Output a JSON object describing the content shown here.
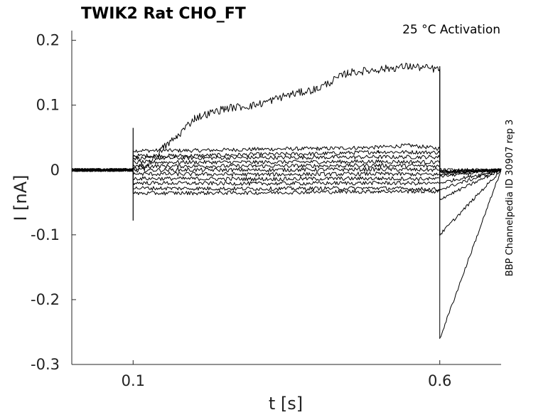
{
  "chart_data": {
    "type": "line",
    "title": "TWIK2  Rat  CHO_FT",
    "annotation": "25 °C  Activation",
    "side_note": "BBP Channelpedia ID 30907 rep 3",
    "xlabel": "t [s]",
    "ylabel": "I [nA]",
    "xlim": [
      0.0,
      0.7
    ],
    "ylim": [
      -0.3,
      0.215
    ],
    "xticks": [
      0.1,
      0.6
    ],
    "xtick_labels": [
      "0.1",
      "0.6"
    ],
    "yticks": [
      -0.3,
      -0.2,
      -0.1,
      0,
      0.1,
      0.2
    ],
    "ytick_labels": [
      "-0.3",
      "-0.2",
      "-0.1",
      "0",
      "0.1",
      "0.2"
    ],
    "grid": false,
    "stim_on": 0.1,
    "stim_off": 0.6,
    "series": [
      {
        "points": [
          [
            0.0,
            0.0
          ],
          [
            0.1,
            0.0
          ],
          [
            0.1,
            0.03
          ],
          [
            0.2,
            0.03
          ],
          [
            0.3,
            0.032
          ],
          [
            0.4,
            0.033
          ],
          [
            0.5,
            0.035
          ],
          [
            0.55,
            0.038
          ],
          [
            0.6,
            0.033
          ],
          [
            0.6,
            -0.002
          ],
          [
            0.7,
            0.0
          ]
        ]
      },
      {
        "points": [
          [
            0.0,
            0.0
          ],
          [
            0.1,
            0.0
          ],
          [
            0.1,
            0.022
          ],
          [
            0.2,
            0.022
          ],
          [
            0.3,
            0.024
          ],
          [
            0.4,
            0.025
          ],
          [
            0.5,
            0.028
          ],
          [
            0.6,
            0.027
          ],
          [
            0.6,
            -0.002
          ],
          [
            0.7,
            0.0
          ]
        ]
      },
      {
        "points": [
          [
            0.0,
            0.0
          ],
          [
            0.1,
            0.0
          ],
          [
            0.1,
            0.018
          ],
          [
            0.3,
            0.019
          ],
          [
            0.5,
            0.02
          ],
          [
            0.6,
            0.02
          ],
          [
            0.6,
            -0.003
          ],
          [
            0.7,
            0.0
          ]
        ]
      },
      {
        "points": [
          [
            0.0,
            0.0
          ],
          [
            0.1,
            0.0
          ],
          [
            0.1,
            0.012
          ],
          [
            0.3,
            0.012
          ],
          [
            0.5,
            0.013
          ],
          [
            0.6,
            0.012
          ],
          [
            0.6,
            -0.004
          ],
          [
            0.7,
            0.0
          ]
        ]
      },
      {
        "points": [
          [
            0.0,
            0.0
          ],
          [
            0.1,
            0.0
          ],
          [
            0.1,
            0.006
          ],
          [
            0.3,
            0.006
          ],
          [
            0.5,
            0.007
          ],
          [
            0.6,
            0.006
          ],
          [
            0.6,
            -0.006
          ],
          [
            0.7,
            0.0
          ]
        ]
      },
      {
        "points": [
          [
            0.0,
            0.0
          ],
          [
            0.1,
            0.0
          ],
          [
            0.1,
            0.0
          ],
          [
            0.3,
            0.0
          ],
          [
            0.5,
            0.001
          ],
          [
            0.6,
            0.0
          ],
          [
            0.6,
            -0.01
          ],
          [
            0.7,
            0.0
          ]
        ]
      },
      {
        "points": [
          [
            0.0,
            0.0
          ],
          [
            0.1,
            0.0
          ],
          [
            0.1,
            -0.006
          ],
          [
            0.3,
            -0.007
          ],
          [
            0.5,
            -0.006
          ],
          [
            0.6,
            -0.007
          ],
          [
            0.6,
            -0.02
          ],
          [
            0.7,
            0.0
          ]
        ]
      },
      {
        "points": [
          [
            0.0,
            0.0
          ],
          [
            0.1,
            0.0
          ],
          [
            0.1,
            -0.013
          ],
          [
            0.3,
            -0.014
          ],
          [
            0.5,
            -0.013
          ],
          [
            0.6,
            -0.014
          ],
          [
            0.6,
            -0.03
          ],
          [
            0.7,
            0.0
          ]
        ]
      },
      {
        "points": [
          [
            0.0,
            0.0
          ],
          [
            0.1,
            0.0
          ],
          [
            0.1,
            -0.02
          ],
          [
            0.3,
            -0.021
          ],
          [
            0.5,
            -0.02
          ],
          [
            0.6,
            -0.021
          ],
          [
            0.6,
            -0.045
          ],
          [
            0.7,
            0.0
          ]
        ]
      },
      {
        "points": [
          [
            0.0,
            0.0
          ],
          [
            0.1,
            0.0
          ],
          [
            0.1,
            -0.028
          ],
          [
            0.3,
            -0.029
          ],
          [
            0.5,
            -0.028
          ],
          [
            0.6,
            -0.03
          ],
          [
            0.6,
            -0.1
          ],
          [
            0.7,
            0.0
          ]
        ]
      },
      {
        "points": [
          [
            0.0,
            0.0
          ],
          [
            0.1,
            0.0
          ],
          [
            0.1,
            -0.036
          ],
          [
            0.3,
            -0.035
          ],
          [
            0.5,
            -0.033
          ],
          [
            0.6,
            -0.033
          ],
          [
            0.6,
            -0.26
          ],
          [
            0.7,
            0.0
          ]
        ]
      },
      {
        "points": [
          [
            0.0,
            0.0
          ],
          [
            0.1,
            0.0
          ],
          [
            0.1,
            0.0
          ],
          [
            0.12,
            0.005
          ],
          [
            0.15,
            0.035
          ],
          [
            0.17,
            0.05
          ],
          [
            0.2,
            0.08
          ],
          [
            0.25,
            0.095
          ],
          [
            0.3,
            0.1
          ],
          [
            0.35,
            0.115
          ],
          [
            0.4,
            0.125
          ],
          [
            0.45,
            0.15
          ],
          [
            0.5,
            0.155
          ],
          [
            0.55,
            0.16
          ],
          [
            0.6,
            0.155
          ],
          [
            0.6,
            0.0
          ],
          [
            0.7,
            0.0
          ]
        ]
      }
    ]
  }
}
